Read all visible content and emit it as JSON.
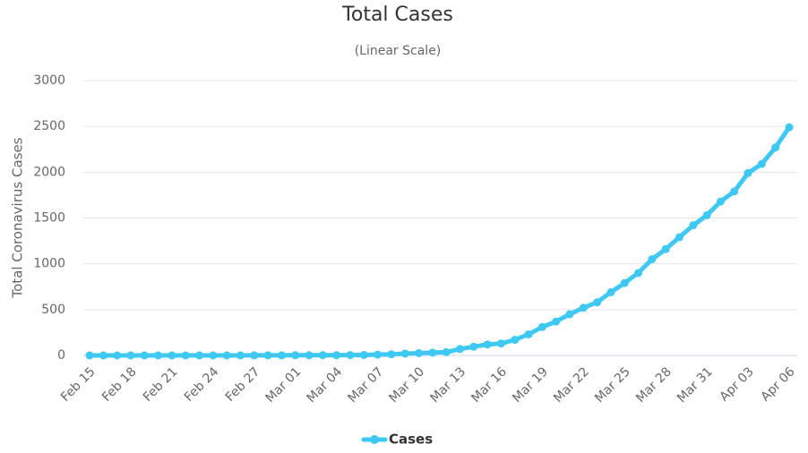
{
  "chart_data": {
    "type": "line",
    "title": "Total Cases",
    "subtitle": "(Linear Scale)",
    "y_label": "Total Coronavirus Cases",
    "categories": [
      "Feb 15",
      null,
      null,
      "Feb 18",
      null,
      null,
      "Feb 21",
      null,
      null,
      "Feb 24",
      null,
      null,
      "Feb 27",
      null,
      null,
      "Mar 01",
      null,
      null,
      "Mar 04",
      null,
      null,
      "Mar 07",
      null,
      null,
      "Mar 10",
      null,
      null,
      "Mar 13",
      null,
      null,
      "Mar 16",
      null,
      null,
      "Mar 19",
      null,
      null,
      "Mar 22",
      null,
      null,
      "Mar 25",
      null,
      null,
      "Mar 28",
      null,
      null,
      "Mar 31",
      null,
      null,
      "Apr 03",
      null,
      null,
      "Apr 06"
    ],
    "series": [
      {
        "name": "Cases",
        "color": "#3ec8f2",
        "values": [
          0,
          0,
          0,
          0,
          0,
          0,
          0,
          0,
          0,
          0,
          0,
          0,
          1,
          1,
          1,
          2,
          2,
          3,
          3,
          4,
          5,
          8,
          12,
          20,
          25,
          30,
          35,
          70,
          95,
          120,
          130,
          170,
          230,
          310,
          370,
          450,
          520,
          580,
          690,
          790,
          900,
          1050,
          1160,
          1290,
          1420,
          1530,
          1680,
          1790,
          1990,
          2090,
          2270,
          2490
        ]
      }
    ],
    "ylim": [
      0,
      3000
    ],
    "yticks": [
      0,
      500,
      1000,
      1500,
      2000,
      2500,
      3000
    ],
    "grid": true,
    "legend": "bottom"
  }
}
